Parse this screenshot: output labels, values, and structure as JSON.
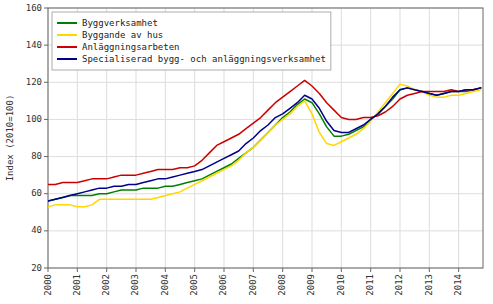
{
  "chart_data": {
    "type": "line",
    "ylabel": "Index (2010=100)",
    "x": [
      2000.0,
      2000.25,
      2000.5,
      2000.75,
      2001.0,
      2001.25,
      2001.5,
      2001.75,
      2002.0,
      2002.25,
      2002.5,
      2002.75,
      2003.0,
      2003.25,
      2003.5,
      2003.75,
      2004.0,
      2004.25,
      2004.5,
      2004.75,
      2005.0,
      2005.25,
      2005.5,
      2005.75,
      2006.0,
      2006.25,
      2006.5,
      2006.75,
      2007.0,
      2007.25,
      2007.5,
      2007.75,
      2008.0,
      2008.25,
      2008.5,
      2008.75,
      2009.0,
      2009.25,
      2009.5,
      2009.75,
      2010.0,
      2010.25,
      2010.5,
      2010.75,
      2011.0,
      2011.25,
      2011.5,
      2011.75,
      2012.0,
      2012.25,
      2012.5,
      2012.75,
      2013.0,
      2013.25,
      2013.5,
      2013.75,
      2014.0,
      2014.25,
      2014.5,
      2014.75
    ],
    "series": [
      {
        "name": "Byggverksamhet",
        "color": "#008000",
        "values": [
          56,
          57,
          58,
          59,
          59,
          59,
          59,
          60,
          60,
          61,
          62,
          62,
          62,
          63,
          63,
          63,
          64,
          64,
          65,
          66,
          67,
          68,
          70,
          72,
          74,
          76,
          79,
          82,
          85,
          89,
          93,
          97,
          101,
          104,
          108,
          111,
          109,
          103,
          96,
          91,
          91,
          92,
          94,
          96,
          100,
          103,
          107,
          111,
          116,
          117,
          116,
          115,
          114,
          113,
          114,
          115,
          115,
          115,
          116,
          117
        ]
      },
      {
        "name": "Byggande av hus",
        "color": "#FFD700",
        "values": [
          53,
          54,
          54,
          54,
          53,
          53,
          54,
          57,
          57,
          57,
          57,
          57,
          57,
          57,
          57,
          58,
          59,
          60,
          61,
          63,
          65,
          67,
          69,
          71,
          73,
          75,
          78,
          82,
          85,
          89,
          93,
          97,
          100,
          103,
          107,
          110,
          103,
          93,
          87,
          86,
          88,
          90,
          92,
          95,
          99,
          104,
          109,
          114,
          119,
          118,
          116,
          115,
          113,
          112,
          112,
          113,
          113,
          114,
          115,
          116
        ]
      },
      {
        "name": "Anläggningsarbeten",
        "color": "#CC0000",
        "values": [
          65,
          65,
          66,
          66,
          66,
          67,
          68,
          68,
          68,
          69,
          70,
          70,
          70,
          71,
          72,
          73,
          73,
          73,
          74,
          74,
          75,
          78,
          82,
          86,
          88,
          90,
          92,
          95,
          98,
          101,
          105,
          109,
          112,
          115,
          118,
          121,
          118,
          114,
          109,
          105,
          101,
          100,
          100,
          101,
          101,
          102,
          104,
          107,
          111,
          113,
          114,
          115,
          115,
          115,
          115,
          116,
          115,
          116,
          116,
          117
        ]
      },
      {
        "name": "Specialiserad bygg- och anläggningsverksamhet",
        "color": "#00008B",
        "values": [
          56,
          57,
          58,
          59,
          60,
          61,
          62,
          63,
          63,
          64,
          64,
          65,
          65,
          66,
          67,
          68,
          68,
          69,
          70,
          71,
          72,
          73,
          75,
          77,
          79,
          81,
          83,
          87,
          90,
          94,
          97,
          101,
          103,
          106,
          109,
          113,
          111,
          106,
          99,
          94,
          93,
          93,
          95,
          97,
          100,
          103,
          107,
          112,
          116,
          117,
          116,
          115,
          114,
          113,
          114,
          115,
          115,
          116,
          116,
          117
        ]
      }
    ],
    "xlim": [
      2000.0,
      2014.83
    ],
    "xticks": [
      2000,
      2001,
      2002,
      2003,
      2004,
      2005,
      2006,
      2007,
      2008,
      2009,
      2010,
      2011,
      2012,
      2013,
      2014
    ],
    "ylim": [
      20,
      160
    ],
    "yticks": [
      20,
      40,
      60,
      80,
      100,
      120,
      140,
      160
    ],
    "grid": true,
    "legend": "upper-left"
  }
}
